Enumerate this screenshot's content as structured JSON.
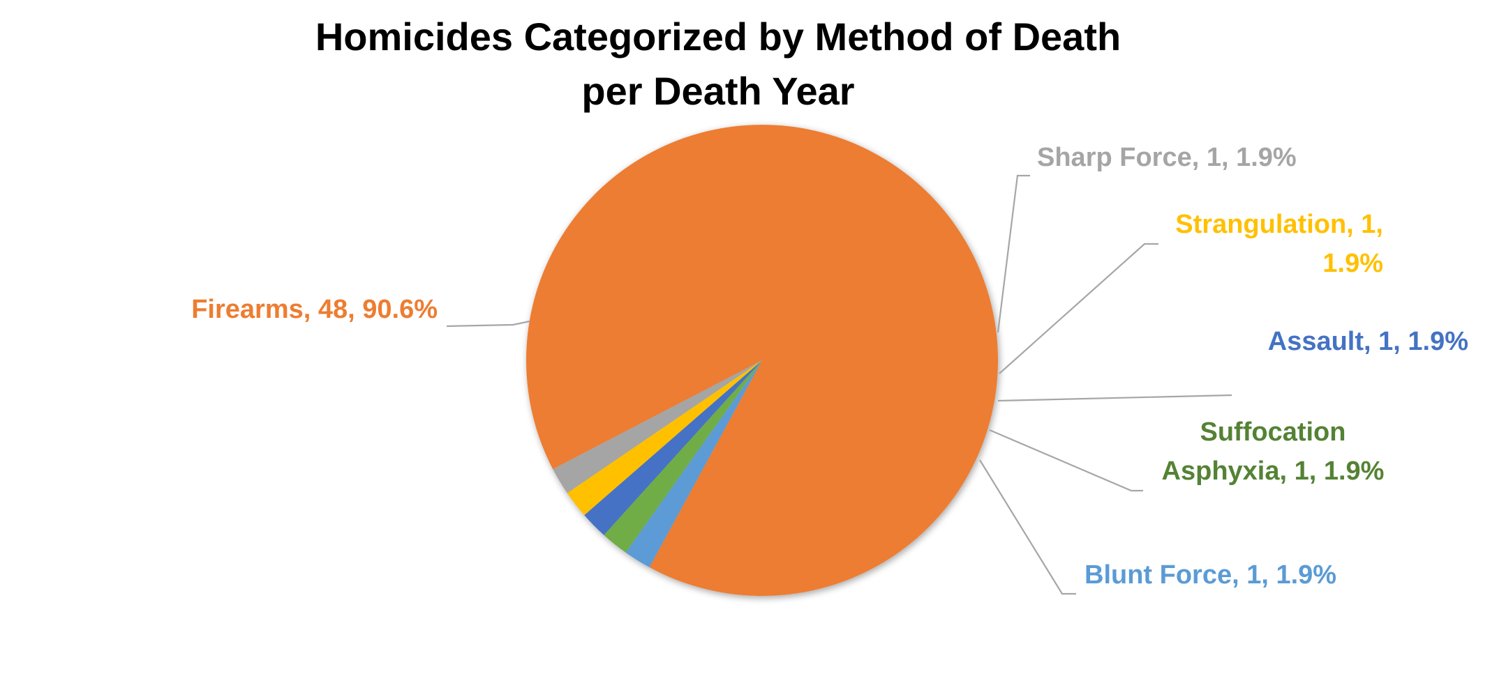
{
  "chart_data": {
    "type": "pie",
    "title_lines": [
      "Homicides Categorized by Method of Death",
      "per Death Year"
    ],
    "slices": [
      {
        "name": "Firearms",
        "value": 48,
        "percent": "90.6%",
        "color": "#ED7D31",
        "label_lines": [
          "Firearms, 48, 90.6%"
        ]
      },
      {
        "name": "Blunt Force",
        "value": 1,
        "percent": "1.9%",
        "color": "#5B9BD5",
        "label_lines": [
          "Blunt Force, 1, 1.9%"
        ]
      },
      {
        "name": "Suffocation Asphyxia",
        "value": 1,
        "percent": "1.9%",
        "color": "#70AD47",
        "label_color": "#548235",
        "label_lines": [
          "Suffocation",
          "Asphyxia, 1, 1.9%"
        ]
      },
      {
        "name": "Assault",
        "value": 1,
        "percent": "1.9%",
        "color": "#4472C4",
        "label_lines": [
          "Assault, 1, 1.9%"
        ]
      },
      {
        "name": "Strangulation",
        "value": 1,
        "percent": "1.9%",
        "color": "#FFC000",
        "label_lines": [
          "Strangulation, 1,",
          "1.9%"
        ]
      },
      {
        "name": "Sharp Force",
        "value": 1,
        "percent": "1.9%",
        "color": "#A5A5A5",
        "label_lines": [
          "Sharp Force, 1, 1.9%"
        ]
      }
    ],
    "leader_line_color": "#A6A6A6"
  }
}
